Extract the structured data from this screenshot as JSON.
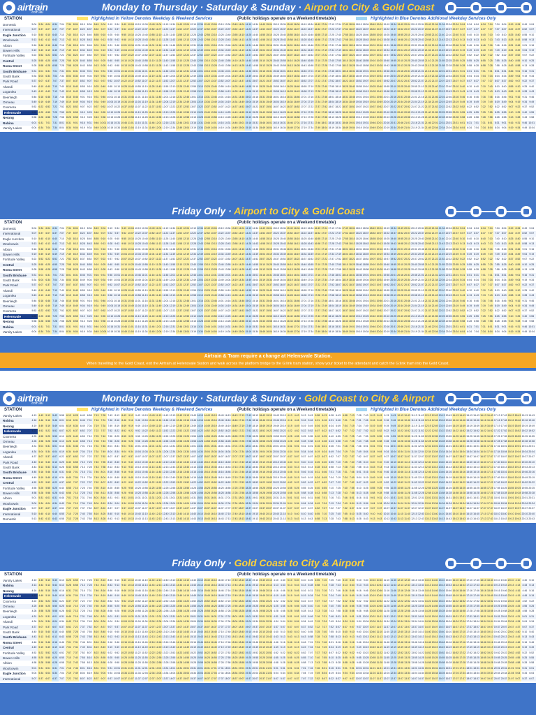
{
  "brand": {
    "logo_text": "airtrain",
    "logo_sub": ".com.au"
  },
  "sections": [
    {
      "title_main": "Monday to Thursday · Saturday & Sunday · ",
      "title_route": "Airport to City & Gold Coast",
      "legend": {
        "station": "STATION",
        "yellow_prefix": "Highlighted in Yellow ",
        "yellow_text": "Denotes Weekday & Weekend Services",
        "middle": "(Public holidays operate on a Weekend timetable)",
        "blue_prefix": "Highlighted in Blue ",
        "blue_text": "Denotes Additional Weekday Services Only"
      },
      "stations": [
        "Domestic",
        "International",
        "Eagle Junction",
        "Wooloowin",
        "Albion",
        "Bowen Hills",
        "Fortitude Valley",
        "Central",
        "Roma Street",
        "South Brisbane",
        "South Bank",
        "Park Road",
        "Altandi",
        "Loganlea",
        "Beenleigh",
        "Ormeau",
        "Coomera",
        "Helensvale",
        "Nerang",
        "Robina",
        "Varsity Lakes"
      ],
      "bold_stations": [
        "Eagle Junction",
        "Central",
        "Roma Street",
        "South Brisbane",
        "Nerang",
        "Robina"
      ],
      "highlight_station": "Helensvale",
      "sample_times": [
        "5:04",
        "5:34",
        "6:04",
        "6:34",
        "7:04",
        "7:34",
        "8:04",
        "8:19",
        "8:34",
        "8:49",
        "9:04",
        "9:19",
        "9:34",
        "9:49",
        "10:04",
        "10:19",
        "10:34",
        "10:49",
        "11:04",
        "11:19",
        "11:34",
        "11:49",
        "12:04",
        "12:19",
        "12:34",
        "12:49",
        "13:04",
        "13:19",
        "13:34",
        "13:49",
        "14:04",
        "14:19",
        "14:34",
        "14:49",
        "15:04",
        "15:19",
        "15:34",
        "15:49",
        "16:04",
        "16:19",
        "16:34",
        "16:49",
        "17:04",
        "17:19",
        "17:34",
        "17:49",
        "18:04",
        "18:19",
        "18:34",
        "18:49",
        "19:04",
        "19:19",
        "19:34",
        "19:49",
        "20:04",
        "20:19",
        "20:34",
        "20:49",
        "21:04",
        "21:34",
        "22:04",
        "22:34"
      ]
    },
    {
      "title_main": "Friday Only · ",
      "title_route": "Airport to City & Gold Coast",
      "legend": {
        "station": "STATION",
        "middle": "(Public holidays operate on a Weekend timetable)"
      },
      "stations": [
        "Domestic",
        "International",
        "Eagle Junction",
        "Wooloowin",
        "Albion",
        "Bowen Hills",
        "Fortitude Valley",
        "Central",
        "Roma Street",
        "South Brisbane",
        "South Bank",
        "Park Road",
        "Altandi",
        "Loganlea",
        "Beenleigh",
        "Ormeau",
        "Coomera",
        "Helensvale",
        "Nerang",
        "Robina",
        "Varsity Lakes"
      ],
      "bold_stations": [
        "Central",
        "Roma Street",
        "South Brisbane",
        "Nerang",
        "Robina"
      ],
      "highlight_station": "Helensvale",
      "sample_times": [
        "5:04",
        "5:34",
        "6:04",
        "6:34",
        "7:04",
        "7:34",
        "8:04",
        "8:19",
        "8:34",
        "8:49",
        "9:04",
        "9:19",
        "9:34",
        "9:49",
        "10:04",
        "10:19",
        "10:34",
        "10:49",
        "11:04",
        "11:19",
        "11:34",
        "11:49",
        "12:04",
        "12:19",
        "12:34",
        "12:49",
        "13:04",
        "13:19",
        "13:34",
        "13:49",
        "14:04",
        "14:19",
        "14:34",
        "14:49",
        "15:04",
        "15:19",
        "15:34",
        "15:49",
        "16:04",
        "16:19",
        "16:34",
        "16:49",
        "17:04",
        "17:19",
        "17:34",
        "17:49",
        "18:04",
        "18:19",
        "18:34",
        "18:49",
        "19:04",
        "19:19",
        "19:34",
        "19:49",
        "20:04",
        "20:19",
        "20:34",
        "20:49",
        "21:04",
        "21:34",
        "22:04",
        "22:34"
      ]
    },
    {
      "title_main": "Monday to Thursday · Saturday & Sunday · ",
      "title_route": "Gold Coast to City & Airport",
      "legend": {
        "station": "STATION",
        "yellow_prefix": "Highlighted in Yellow ",
        "yellow_text": "Denotes Weekday & Weekend Services",
        "middle": "(Public holidays operate on a Weekend timetable)",
        "blue_prefix": "Highlighted in Blue ",
        "blue_text": "Denotes Additional Weekday Services Only"
      },
      "stations": [
        "Varsity Lakes",
        "Robina",
        "Nerang",
        "Helensvale",
        "Coomera",
        "Ormeau",
        "Beenleigh",
        "Loganlea",
        "Altandi",
        "Park Road",
        "South Bank",
        "South Brisbane",
        "Roma Street",
        "Central",
        "Fortitude Valley",
        "Bowen Hills",
        "Albion",
        "Wooloowin",
        "Eagle Junction",
        "International",
        "Domestic"
      ],
      "bold_stations": [
        "Robina",
        "Nerang",
        "South Brisbane",
        "Roma Street",
        "Central",
        "Eagle Junction"
      ],
      "highlight_station": "Helensvale",
      "sample_times": [
        "4:13",
        "4:43",
        "5:13",
        "5:43",
        "5:58",
        "6:13",
        "6:28",
        "6:43",
        "6:58",
        "7:13",
        "7:28",
        "7:43",
        "8:13",
        "8:43",
        "9:13",
        "9:43",
        "10:13",
        "10:43",
        "11:13",
        "11:43",
        "12:13",
        "12:43",
        "13:13",
        "13:43",
        "14:13",
        "14:43",
        "15:13",
        "15:43",
        "16:13",
        "16:43",
        "17:13",
        "17:43",
        "18:13",
        "18:43",
        "19:13",
        "19:43",
        "20:13"
      ]
    },
    {
      "title_main": "Friday Only · ",
      "title_route": "Gold Coast to City & Airport",
      "legend": {
        "station": "STATION",
        "middle": "(Public holidays operate on a Weekend timetable)"
      },
      "stations": [
        "Varsity Lakes",
        "Robina",
        "Nerang",
        "Helensvale",
        "Coomera",
        "Ormeau",
        "Beenleigh",
        "Loganlea",
        "Altandi",
        "Park Road",
        "South Bank",
        "South Brisbane",
        "Roma Street",
        "Central",
        "Fortitude Valley",
        "Bowen Hills",
        "Albion",
        "Wooloowin",
        "Eagle Junction",
        "International"
      ],
      "bold_stations": [
        "Robina",
        "Nerang",
        "South Brisbane",
        "Roma Street",
        "Central",
        "Eagle Junction"
      ],
      "highlight_station": "Helensvale",
      "sample_times": [
        "4:10",
        "4:40",
        "5:10",
        "5:40",
        "6:10",
        "6:25",
        "6:55",
        "7:10",
        "7:25",
        "7:40",
        "8:10",
        "8:40",
        "9:10",
        "9:40",
        "10:10",
        "10:40",
        "11:10",
        "11:40",
        "12:10",
        "12:40",
        "13:10",
        "13:40",
        "14:10",
        "14:40",
        "15:10",
        "15:40",
        "16:10",
        "16:40",
        "17:10",
        "17:40",
        "18:10",
        "18:40",
        "19:10",
        "19:40",
        "20:10"
      ]
    }
  ],
  "transfer_note": {
    "title": "Airtrain & Tram require a change at Helensvale Station.",
    "body": "When travelling to the Gold Coast, exit the Airtrain at Helensvale Station and walk across the platform bridge to the G:link tram station, show your ticket to the attendant and catch the G:link tram into the Gold Coast."
  }
}
